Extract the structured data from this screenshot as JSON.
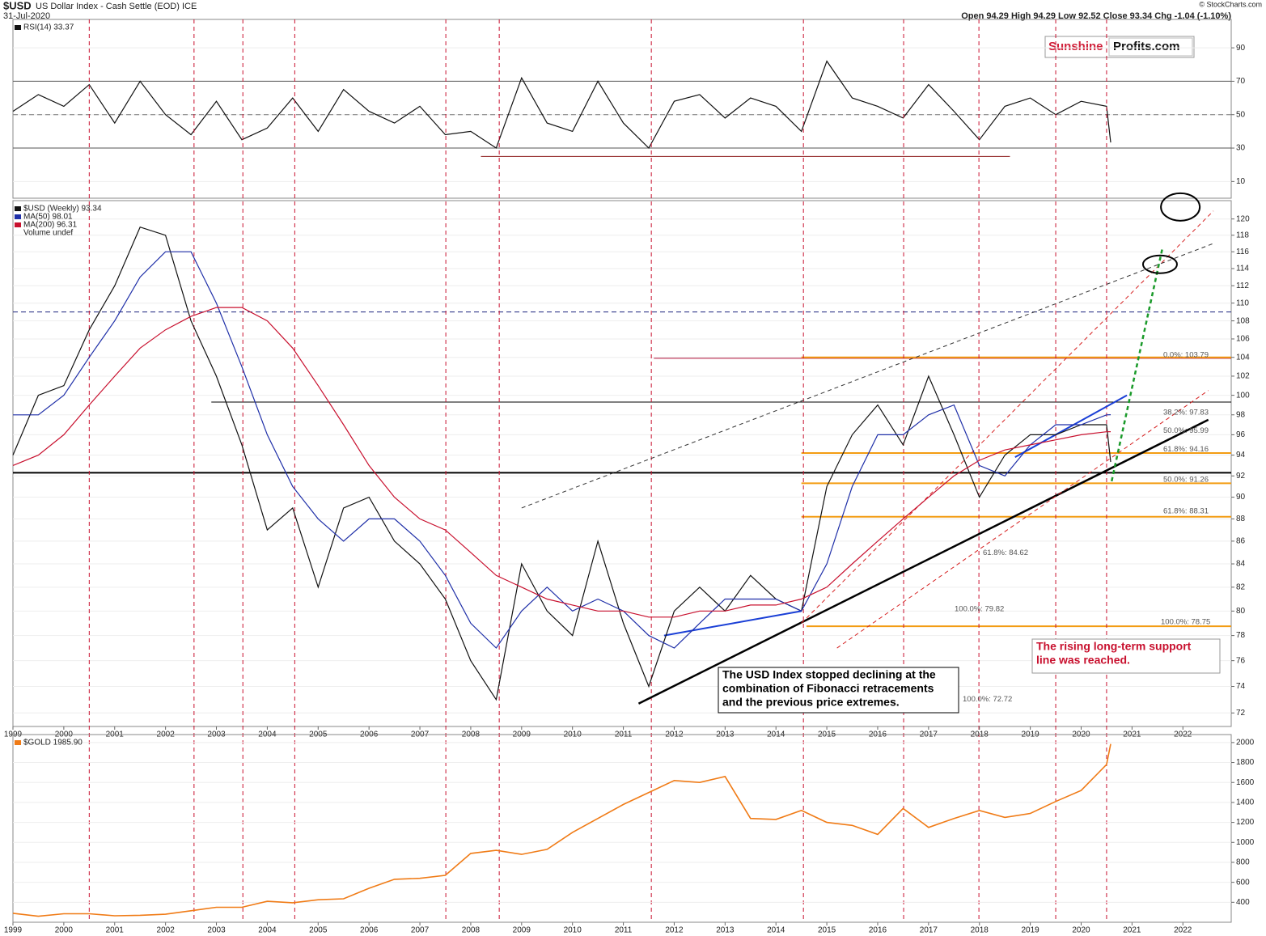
{
  "header": {
    "symbol": "$USD",
    "description": "US Dollar Index - Cash Settle (EOD) ICE",
    "date": "31-Jul-2020",
    "source": "© StockCharts.com",
    "quote": "Open 94.29  High 94.29  Low 92.52  Close 93.34  Chg -1.04 (-1.10%)",
    "logo_a": "Sunshine",
    "logo_b": "Profits.com"
  },
  "chart_data": [
    {
      "type": "line",
      "log": false,
      "xlim": [
        1999,
        2022.95
      ],
      "ylim": [
        0,
        107
      ],
      "yticks": [
        10,
        30,
        50,
        70,
        90
      ],
      "levels": [
        {
          "value": 70,
          "color": "#555"
        },
        {
          "value": 50,
          "color": "#777",
          "dashed": true
        },
        {
          "value": 30,
          "color": "#555"
        }
      ],
      "lines": [
        {
          "from": [
            2008.2,
            25
          ],
          "to": [
            2018.6,
            25
          ],
          "color": "#8b1a1a"
        }
      ],
      "x": [
        1999,
        1999.5,
        2000,
        2000.5,
        2001,
        2001.5,
        2002,
        2002.5,
        2003,
        2003.5,
        2004,
        2004.5,
        2005,
        2005.5,
        2006,
        2006.5,
        2007,
        2007.5,
        2008,
        2008.5,
        2009,
        2009.5,
        2010,
        2010.5,
        2011,
        2011.5,
        2012,
        2012.5,
        2013,
        2013.5,
        2014,
        2014.5,
        2015,
        2015.5,
        2016,
        2016.5,
        2017,
        2017.5,
        2018,
        2018.5,
        2019,
        2019.5,
        2020,
        2020.5,
        2020.58
      ],
      "series": [
        {
          "name": "RSI(14) 33.37",
          "color": "#111",
          "values": [
            52,
            62,
            55,
            68,
            45,
            70,
            50,
            38,
            58,
            35,
            42,
            60,
            40,
            65,
            52,
            45,
            55,
            38,
            40,
            30,
            72,
            45,
            40,
            70,
            45,
            30,
            58,
            62,
            48,
            60,
            55,
            40,
            82,
            60,
            55,
            48,
            68,
            52,
            35,
            55,
            60,
            50,
            58,
            55,
            33.37
          ]
        }
      ]
    },
    {
      "type": "line",
      "log": true,
      "xlim": [
        1999,
        2022.95
      ],
      "ylim": [
        71,
        122.3
      ],
      "yticks": [
        72,
        74,
        76,
        78,
        80,
        82,
        84,
        86,
        88,
        90,
        92,
        94,
        96,
        98,
        100,
        102,
        104,
        106,
        108,
        110,
        112,
        114,
        116,
        118,
        120
      ],
      "xticks": [
        1999,
        2000,
        2001,
        2002,
        2003,
        2004,
        2005,
        2006,
        2007,
        2008,
        2009,
        2010,
        2011,
        2012,
        2013,
        2014,
        2015,
        2016,
        2017,
        2018,
        2019,
        2020,
        2021,
        2022
      ],
      "cycle_lines": [
        2000.5,
        2002.56,
        2003.52,
        2004.54,
        2007.51,
        2008.56,
        2011.55,
        2014.54,
        2016.51,
        2017.99,
        2019.5,
        2020.5
      ],
      "levels": [
        {
          "value": 92.3,
          "color": "#000",
          "width": 2,
          "from": 1999
        },
        {
          "value": 109,
          "color": "#1a237e",
          "dashed": true,
          "from": 1999
        },
        {
          "value": 99.3,
          "color": "#000",
          "from": 2002.9
        },
        {
          "value": 103.9,
          "color": "#b0103a",
          "from": 2011.6
        },
        {
          "value": 104,
          "color": "#f39c12",
          "from": 2014.5,
          "width": 2
        },
        {
          "value": 94.2,
          "color": "#f39c12",
          "from": 2014.5,
          "width": 2
        },
        {
          "value": 91.3,
          "color": "#f39c12",
          "from": 2014.5,
          "width": 2
        },
        {
          "value": 88.2,
          "color": "#f39c12",
          "from": 2014.5,
          "width": 2
        },
        {
          "value": 78.75,
          "color": "#f39c12",
          "from": 2014.6,
          "width": 2
        }
      ],
      "lines": [
        {
          "from": [
            2011.3,
            72.7
          ],
          "to": [
            2022.5,
            97.5
          ],
          "color": "#000",
          "width": 2.5
        },
        {
          "from": [
            2009.0,
            89
          ],
          "to": [
            2022.6,
            117
          ],
          "color": "#333",
          "dashed": true
        },
        {
          "from": [
            2014.5,
            79
          ],
          "to": [
            2022.6,
            121
          ],
          "color": "#d62020",
          "dashed": true
        },
        {
          "from": [
            2015.2,
            77
          ],
          "to": [
            2022.5,
            100.5
          ],
          "color": "#d62020",
          "dashed": true
        },
        {
          "from": [
            2020.6,
            91.5
          ],
          "to": [
            2021.6,
            116.5
          ],
          "color": "#1a9a2a",
          "dashed": true,
          "width": 2.5
        },
        {
          "from": [
            2011.8,
            78
          ],
          "to": [
            2014.5,
            80
          ],
          "color": "#1a3fd6",
          "width": 2
        },
        {
          "from": [
            2018.7,
            93.8
          ],
          "to": [
            2020.9,
            100
          ],
          "color": "#1a3fd6",
          "width": 2
        }
      ],
      "circles": [
        {
          "center": [
            2021.95,
            121.5
          ],
          "color": "#000"
        },
        {
          "center": [
            2021.55,
            114.5
          ],
          "color": "#000"
        }
      ],
      "fibs": [
        {
          "label": "0.0%: 103.79",
          "value": 103.79
        },
        {
          "label": "38.2%: 97.83",
          "value": 97.83
        },
        {
          "label": "50.0%: 95.99",
          "value": 95.99
        },
        {
          "label": "61.8%: 94.16",
          "value": 94.16
        },
        {
          "label": "50.0%: 91.26",
          "value": 91.26
        },
        {
          "label": "61.8%: 88.31",
          "value": 88.31
        },
        {
          "label": "100.0%: 78.75",
          "value": 78.75
        },
        {
          "label": "61.8%: 84.62",
          "value": 84.62
        },
        {
          "label": "100.0%: 79.82",
          "value": 79.82
        },
        {
          "label": "100.0%: 72.72",
          "value": 72.72
        }
      ],
      "annotations": [
        {
          "lines": [
            "The USD Index stopped declining at the",
            "combination of Fibonacci retracements",
            "and the previous price extremes."
          ]
        },
        {
          "lines": [
            "The rising long-term support",
            "line was reached."
          ]
        }
      ],
      "legend_extra": "Volume undef",
      "x": [
        1999,
        1999.5,
        2000,
        2000.5,
        2001,
        2001.5,
        2002,
        2002.5,
        2003,
        2003.5,
        2004,
        2004.5,
        2005,
        2005.5,
        2006,
        2006.5,
        2007,
        2007.5,
        2008,
        2008.5,
        2009,
        2009.5,
        2010,
        2010.5,
        2011,
        2011.5,
        2012,
        2012.5,
        2013,
        2013.5,
        2014,
        2014.5,
        2015,
        2015.5,
        2016,
        2016.5,
        2017,
        2017.5,
        2018,
        2018.5,
        2019,
        2019.5,
        2020,
        2020.5,
        2020.58
      ],
      "series": [
        {
          "name": "$USD (Weekly) 93.34",
          "color": "#111",
          "values": [
            94,
            100,
            101,
            107,
            112,
            119,
            118,
            108,
            102,
            95,
            87,
            89,
            82,
            89,
            90,
            86,
            84,
            81,
            76,
            73,
            84,
            80,
            78,
            86,
            79,
            74,
            80,
            82,
            80,
            83,
            81,
            80,
            91,
            96,
            99,
            95,
            102,
            96,
            90,
            94,
            96,
            96,
            97,
            97,
            93.34
          ]
        },
        {
          "name": "MA(50) 98.01",
          "color": "#1f2fa8",
          "values": [
            98,
            98,
            100,
            104,
            108,
            113,
            116,
            116,
            110,
            103,
            96,
            91,
            88,
            86,
            88,
            88,
            86,
            83,
            79,
            77,
            80,
            82,
            80,
            81,
            80,
            78,
            77,
            79,
            81,
            81,
            81,
            80,
            84,
            91,
            96,
            96,
            98,
            99,
            93,
            92,
            95,
            97,
            97,
            98,
            98.01
          ]
        },
        {
          "name": "MA(200) 96.31",
          "color": "#c8102e",
          "values": [
            93,
            94,
            96,
            99,
            102,
            105,
            107,
            108.5,
            109.5,
            109.5,
            108,
            105,
            101,
            97,
            93,
            90,
            88,
            87,
            85,
            83,
            82,
            81,
            80.5,
            80,
            80,
            79.5,
            79.5,
            80,
            80,
            80.5,
            80.5,
            81,
            82,
            84,
            86,
            88,
            90,
            92,
            93.5,
            94.5,
            95,
            95.5,
            96,
            96.3,
            96.31
          ]
        }
      ]
    },
    {
      "type": "line",
      "log": false,
      "xlim": [
        1999,
        2022.95
      ],
      "ylim": [
        200,
        2080
      ],
      "yticks": [
        400,
        600,
        800,
        1000,
        1200,
        1400,
        1600,
        1800,
        2000
      ],
      "x": [
        1999,
        1999.5,
        2000,
        2000.5,
        2001,
        2001.5,
        2002,
        2002.5,
        2003,
        2003.5,
        2004,
        2004.5,
        2005,
        2005.5,
        2006,
        2006.5,
        2007,
        2007.5,
        2008,
        2008.5,
        2009,
        2009.5,
        2010,
        2010.5,
        2011,
        2011.5,
        2012,
        2012.5,
        2013,
        2013.5,
        2014,
        2014.5,
        2015,
        2015.5,
        2016,
        2016.5,
        2017,
        2017.5,
        2018,
        2018.5,
        2019,
        2019.5,
        2020,
        2020.5,
        2020.58
      ],
      "series": [
        {
          "name": "$GOLD 1985.90",
          "color": "#f07b16",
          "values": [
            290,
            260,
            285,
            285,
            265,
            270,
            280,
            315,
            350,
            350,
            410,
            395,
            425,
            435,
            540,
            630,
            640,
            670,
            890,
            920,
            880,
            930,
            1100,
            1240,
            1380,
            1500,
            1620,
            1600,
            1660,
            1240,
            1230,
            1320,
            1200,
            1170,
            1080,
            1340,
            1150,
            1240,
            1320,
            1250,
            1290,
            1410,
            1520,
            1780,
            1985.9
          ]
        }
      ]
    }
  ]
}
